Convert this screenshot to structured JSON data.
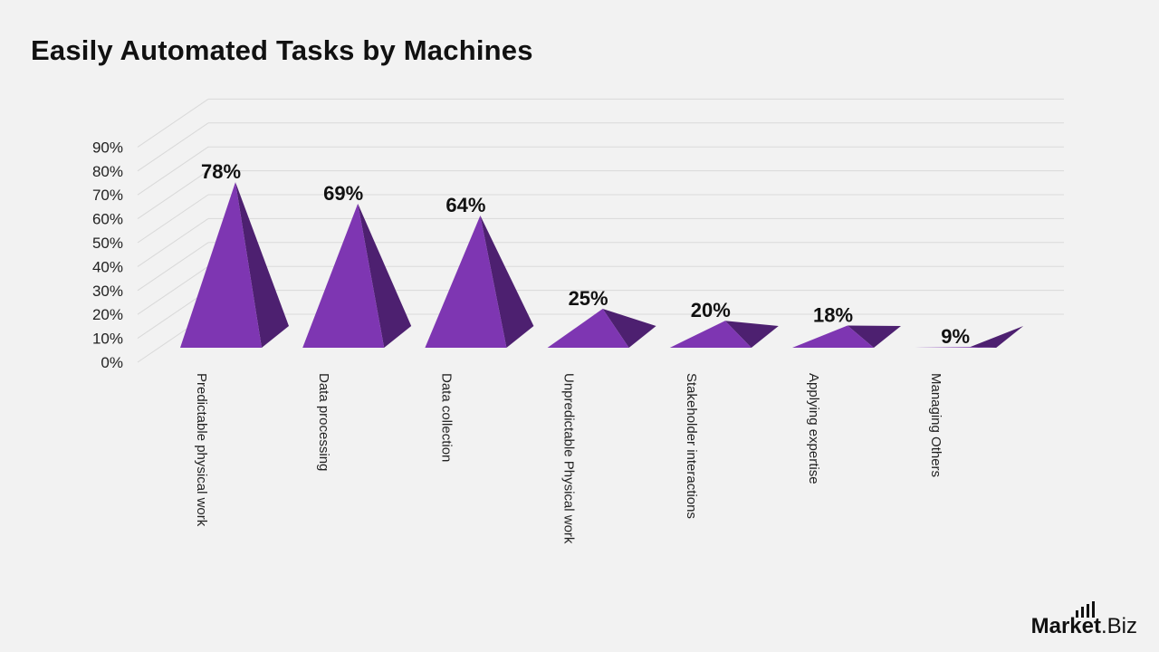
{
  "title": "Easily Automated Tasks by Machines",
  "chart_data": {
    "type": "bar",
    "style": "3d-pyramid",
    "title": "Easily Automated Tasks by Machines",
    "categories": [
      "Predictable physical work",
      "Data processing",
      "Data collection",
      "Unpredictable Physical work",
      "Stakeholder interactions",
      "Applying expertise",
      "Managing Others"
    ],
    "values": [
      78,
      69,
      64,
      25,
      20,
      18,
      9
    ],
    "data_labels": [
      "78%",
      "69%",
      "64%",
      "25%",
      "20%",
      "18%",
      "9%"
    ],
    "y_ticks": [
      "0%",
      "10%",
      "20%",
      "30%",
      "40%",
      "50%",
      "60%",
      "70%",
      "80%",
      "90%"
    ],
    "ylim": [
      0,
      90
    ],
    "grid": true,
    "legend": "none",
    "colors": {
      "front": "#7e36b2",
      "side": "#4d2070",
      "grid": "#d9d9d9",
      "text": "#111111"
    }
  },
  "logo": {
    "brand": "Market",
    "suffix": ".Biz"
  }
}
